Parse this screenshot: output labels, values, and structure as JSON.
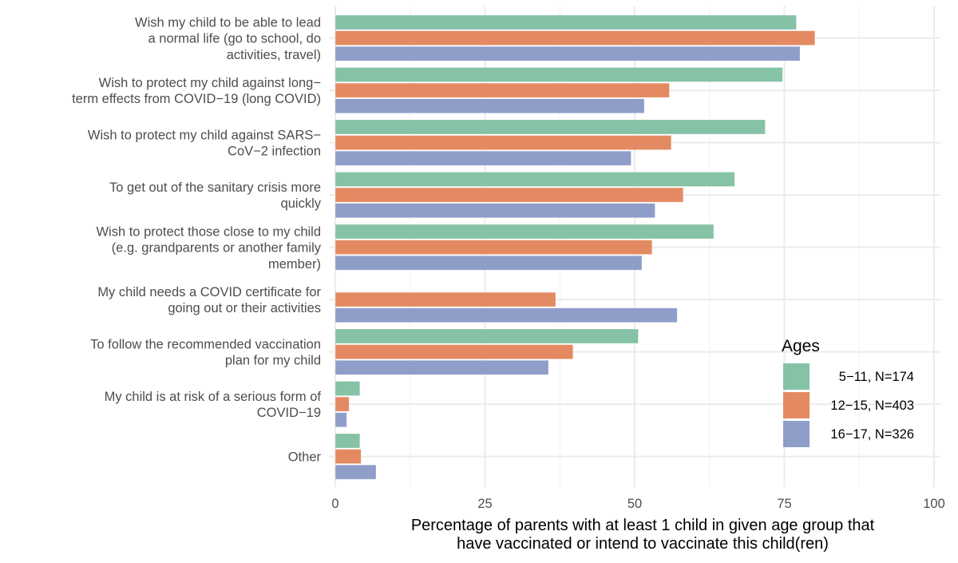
{
  "chart_data": {
    "type": "bar",
    "orientation": "horizontal",
    "title": "",
    "xlabel": [
      "Percentage of parents with at least 1 child in given age group that",
      "have vaccinated or intend to vaccinate this child(ren)"
    ],
    "ylabel": "",
    "xlim": [
      0,
      100
    ],
    "xticks": [
      0,
      25,
      50,
      75,
      100
    ],
    "xtick_labels": [
      "0",
      "25",
      "50",
      "75",
      "100"
    ],
    "grid": true,
    "categories": [
      [
        "Wish my child to be able to lead",
        "a normal life (go to school, do",
        "activities, travel)"
      ],
      [
        "Wish to protect my child against long−",
        "term effects from COVID−19 (long COVID)"
      ],
      [
        "Wish to protect my child against SARS−",
        "CoV−2 infection"
      ],
      [
        "To get out of the sanitary crisis more",
        "quickly"
      ],
      [
        "Wish to protect those close to my child",
        "(e.g. grandparents or another family",
        "member)"
      ],
      [
        "My child needs a COVID certificate for",
        "going out or their activities"
      ],
      [
        "To follow the recommended vaccination",
        "plan for my child"
      ],
      [
        "My child is at risk of a serious form of",
        "COVID−19"
      ],
      [
        "Other"
      ]
    ],
    "series": [
      {
        "name": "5−11, N=174",
        "color": "#86c2a5",
        "values": [
          77.0,
          74.7,
          71.8,
          66.7,
          63.2,
          null,
          50.6,
          4.1,
          4.1
        ]
      },
      {
        "name": "12−15, N=403",
        "color": "#e48a62",
        "values": [
          80.1,
          55.8,
          56.1,
          58.1,
          52.9,
          36.8,
          39.7,
          2.3,
          4.3
        ]
      },
      {
        "name": "16−17, N=326",
        "color": "#8f9dc9",
        "values": [
          77.6,
          51.6,
          49.4,
          53.4,
          51.2,
          57.1,
          35.6,
          1.9,
          6.8
        ]
      }
    ],
    "legend": {
      "title": "Ages",
      "position": "bottom-right inside",
      "entries": [
        "5−11, N=174",
        "12−15, N=403",
        "16−17, N=326"
      ]
    }
  }
}
